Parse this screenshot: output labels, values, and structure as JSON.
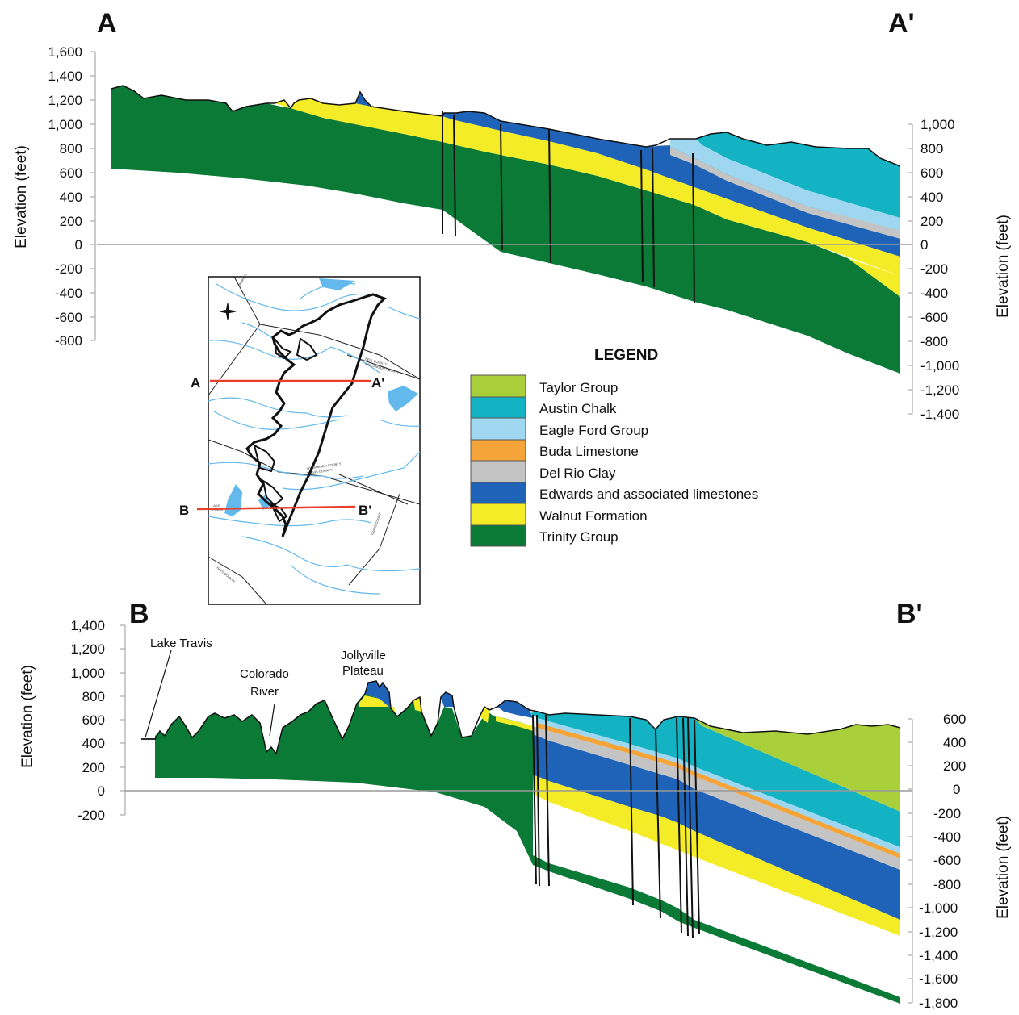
{
  "section_a": {
    "label_start": "A",
    "label_end": "A'",
    "left_axis_label": "Elevation (feet)",
    "right_axis_label": "Elevation (feet)",
    "left_ticks": [
      "1,600",
      "1,400",
      "1,200",
      "1,000",
      "800",
      "600",
      "400",
      "200",
      "0",
      "-200",
      "-400",
      "-600",
      "-800"
    ],
    "right_ticks": [
      "1,000",
      "800",
      "600",
      "400",
      "200",
      "0",
      "-200",
      "-400",
      "-600",
      "-800",
      "-1,000",
      "-1,200",
      "-1,400"
    ]
  },
  "section_b": {
    "label_start": "B",
    "label_end": "B'",
    "left_axis_label": "Elevation (feet)",
    "right_axis_label": "Elevation (feet)",
    "left_ticks": [
      "1,400",
      "1,200",
      "1,000",
      "800",
      "600",
      "400",
      "200",
      "0",
      "-200"
    ],
    "right_ticks": [
      "600",
      "400",
      "200",
      "0",
      "-200",
      "-400",
      "-600",
      "-800",
      "-1,000",
      "-1,200",
      "-1,400",
      "-1,600",
      "-1,800"
    ],
    "annotations": {
      "lake_travis": "Lake Travis",
      "colorado_river_1": "Colorado",
      "colorado_river_2": "River",
      "jollyville_1": "Jollyville",
      "jollyville_2": "Plateau"
    }
  },
  "map": {
    "label_a": "A",
    "label_a_prime": "A'",
    "label_b": "B",
    "label_b_prime": "B'",
    "line_color": "#e8402a",
    "water_color": "#63b8ec"
  },
  "legend": {
    "title": "LEGEND",
    "items": [
      {
        "label": "Taylor Group",
        "color": "#a9cf3b"
      },
      {
        "label": "Austin Chalk",
        "color": "#13b3c4"
      },
      {
        "label": "Eagle Ford Group",
        "color": "#9ed7ef"
      },
      {
        "label": "Buda Limestone",
        "color": "#f5a43a"
      },
      {
        "label": "Del Rio Clay",
        "color": "#c4c4c4"
      },
      {
        "label": "Edwards and associated limestones",
        "color": "#1f63b9"
      },
      {
        "label": "Walnut Formation",
        "color": "#f5ec28"
      },
      {
        "label": "Trinity Group",
        "color": "#0a7a36"
      }
    ]
  }
}
